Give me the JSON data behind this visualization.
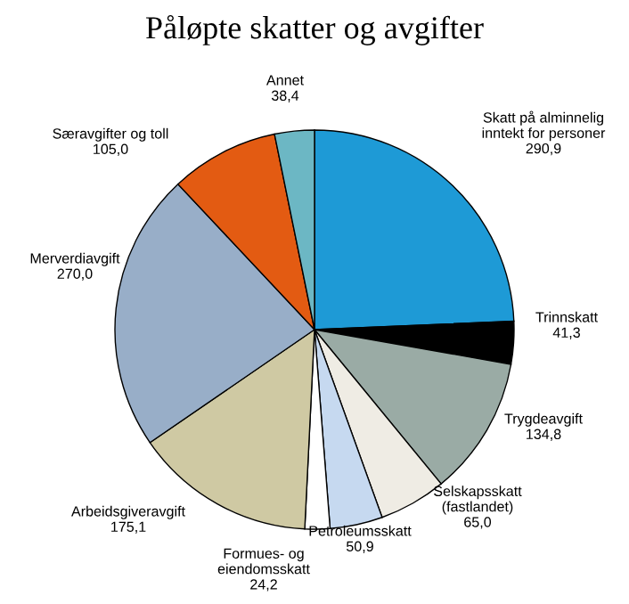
{
  "chart_data": {
    "type": "pie",
    "title": "Påløpte skatter og avgifter",
    "categories": [
      "Skatt på alminnelig\ninntekt for personer",
      "Trinnskatt",
      "Trygdeavgift",
      "Selskapsskatt\n(fastlandet)",
      "Petroleumsskatt",
      "Formues- og\neiendomsskatt",
      "Arbeidsgiveravgift",
      "Merverdiavgift",
      "Særavgifter og toll",
      "Annet"
    ],
    "values": [
      290.9,
      41.3,
      134.8,
      65.0,
      50.9,
      24.2,
      175.1,
      270.0,
      105.0,
      38.4
    ],
    "value_labels": [
      "290,9",
      "41,3",
      "134,8",
      "65,0",
      "50,9",
      "24,2",
      "175,1",
      "270,0",
      "105,0",
      "38,4"
    ],
    "colors": [
      "#1e9ad6",
      "#000000",
      "#9aaba5",
      "#efece4",
      "#c6d9f0",
      "#ffffff",
      "#cfc9a3",
      "#98aec8",
      "#e35b12",
      "#6cb7c4"
    ],
    "legend": false
  }
}
